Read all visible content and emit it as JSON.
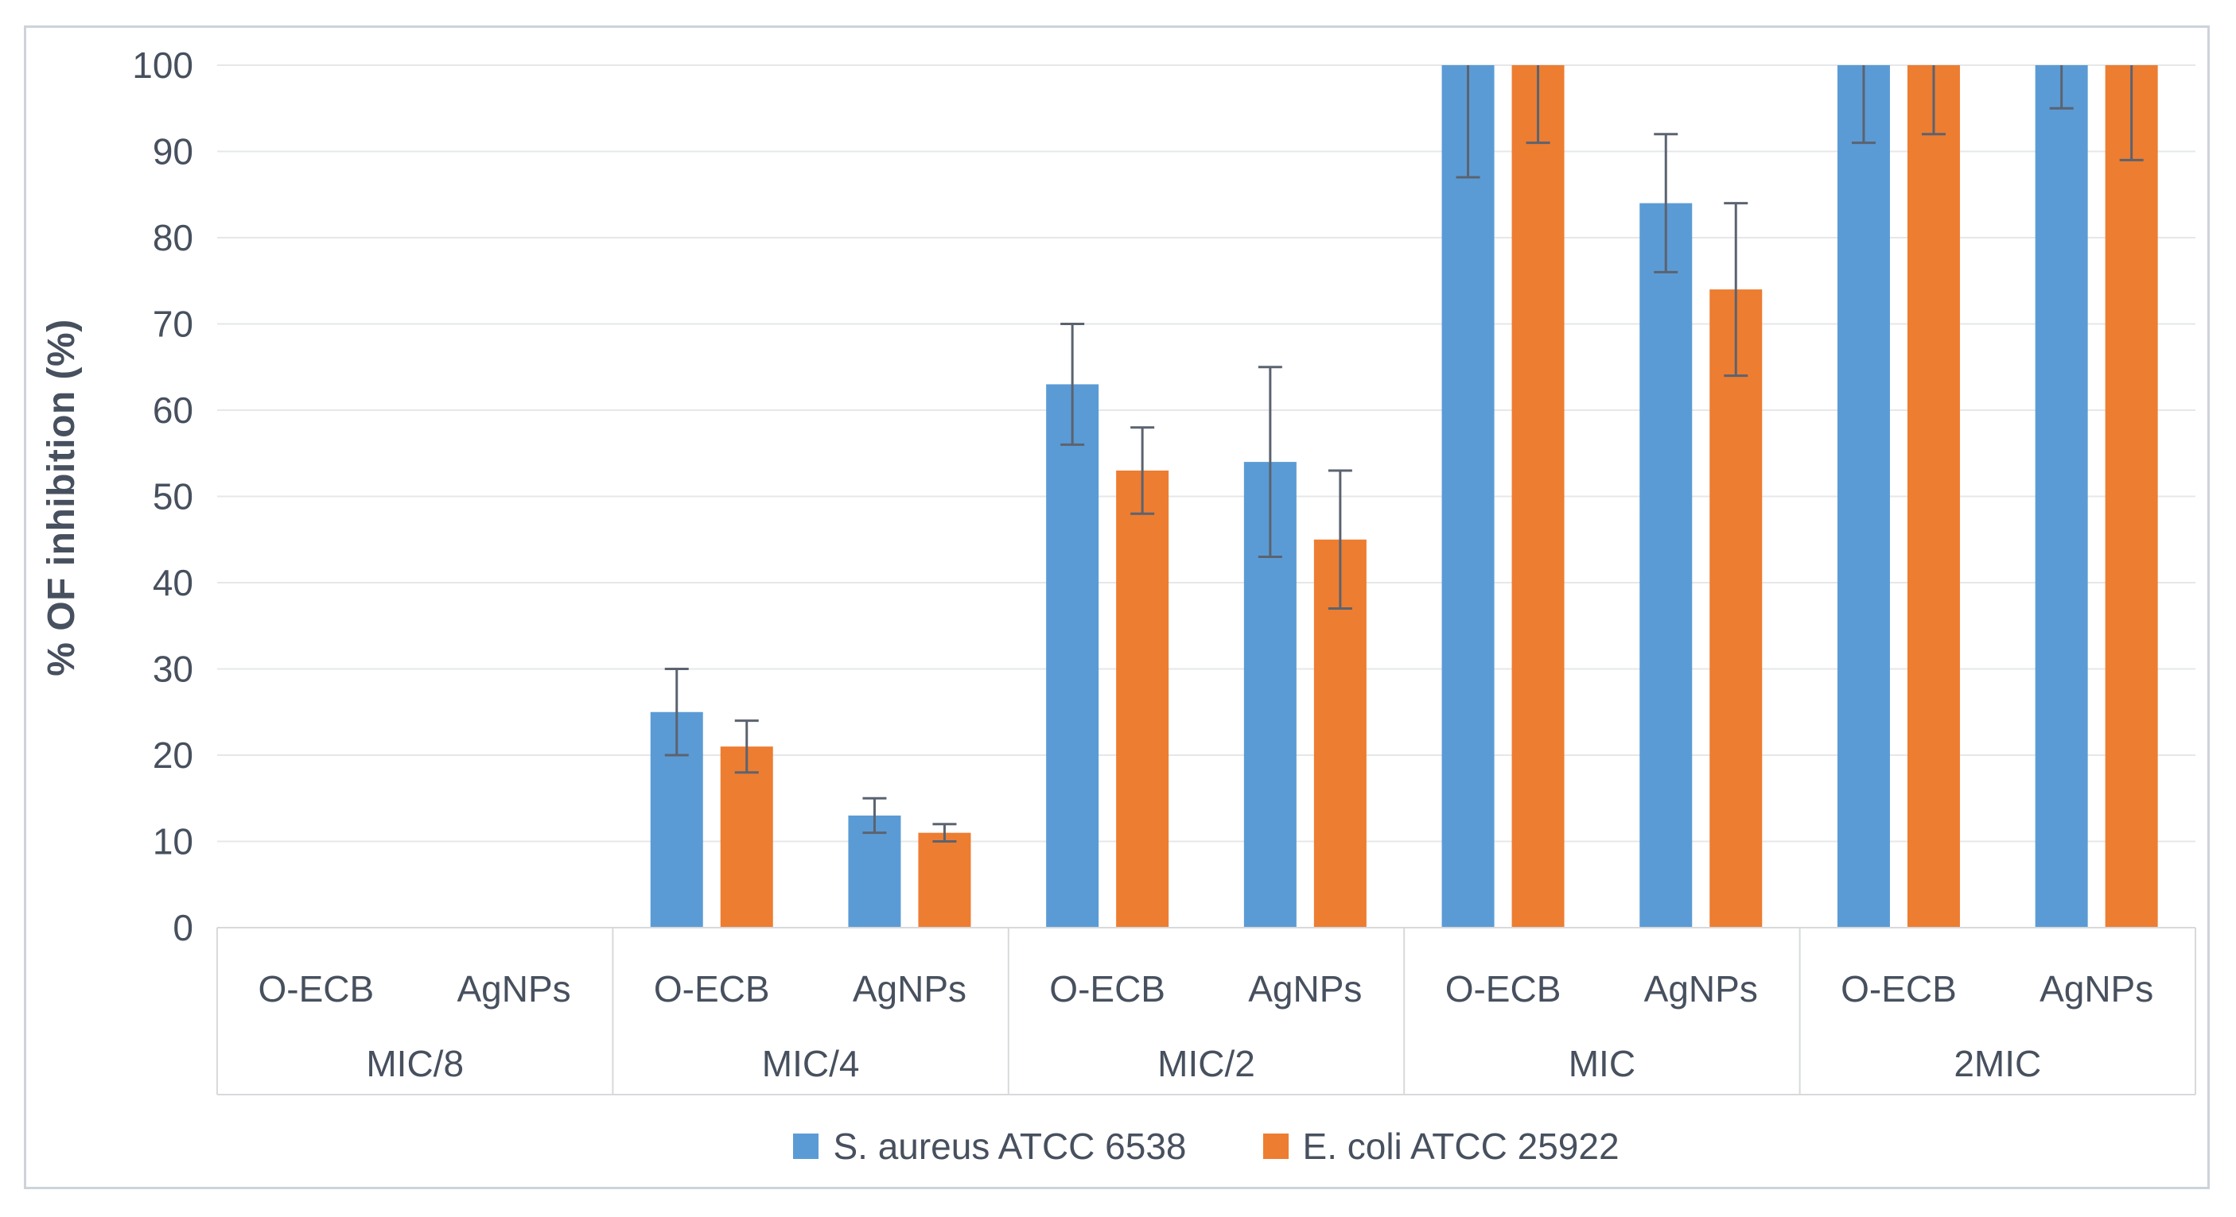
{
  "figure": {
    "background": "#ffffff",
    "border_color": "#cdd3da"
  },
  "chart_data": {
    "type": "bar",
    "title": "",
    "xlabel": "",
    "ylabel": "% OF inhibition (%)",
    "ylim": [
      0,
      100
    ],
    "yticks": [
      0,
      10,
      20,
      30,
      40,
      50,
      60,
      70,
      80,
      90,
      100
    ],
    "grid": true,
    "legend_position": "bottom",
    "groups": [
      "MIC/8",
      "MIC/4",
      "MIC/2",
      "MIC",
      "2MIC"
    ],
    "subgroups": [
      "O-ECB",
      "AgNPs"
    ],
    "series": [
      {
        "name": "S. aureus ATCC 6538",
        "color": "#5B9BD5",
        "values": [
          [
            0,
            0
          ],
          [
            25,
            13
          ],
          [
            63,
            54
          ],
          [
            100,
            84
          ],
          [
            100,
            100
          ]
        ],
        "errors": [
          [
            0,
            0
          ],
          [
            5,
            2
          ],
          [
            7,
            11
          ],
          [
            13,
            8
          ],
          [
            9,
            5
          ]
        ]
      },
      {
        "name": "E. coli ATCC 25922",
        "color": "#ED7D31",
        "values": [
          [
            0,
            0
          ],
          [
            21,
            11
          ],
          [
            53,
            45
          ],
          [
            100,
            74
          ],
          [
            100,
            100
          ]
        ],
        "errors": [
          [
            0,
            0
          ],
          [
            3,
            1
          ],
          [
            5,
            8
          ],
          [
            9,
            10
          ],
          [
            8,
            11
          ]
        ]
      }
    ],
    "colors": {
      "grid": "#e5e7e9",
      "axis_labels": "#47505e",
      "error_bar": "#5b6370",
      "label_box_border": "#d7d9db"
    }
  }
}
